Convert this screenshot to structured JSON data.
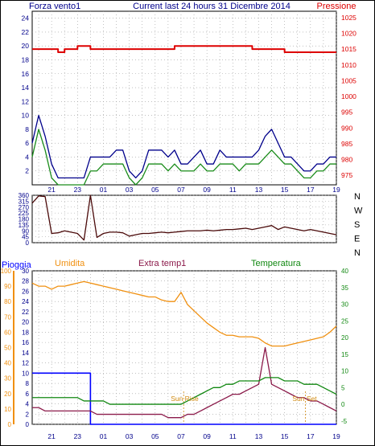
{
  "header": {
    "left": "Forza vento1",
    "center": "Current last 24 hours 31 Dicembre 2014",
    "right": "Pressione"
  },
  "colors": {
    "frame": "#000000",
    "grid": "#9a9a9a",
    "wind_max": "#00008b",
    "wind_avg": "#1a8c1a",
    "pressure": "#dd0000",
    "direction": "#4a0a0a",
    "rain": "#0000ff",
    "humidity": "#f09010",
    "extra_temp": "#8b1a4a",
    "temperature": "#118811",
    "sun": "#d08a10",
    "axis_blue": "#00008b"
  },
  "x_tick_labels": [
    "21",
    "23",
    "01",
    "03",
    "05",
    "07",
    "09",
    "11",
    "13",
    "15",
    "17",
    "19"
  ],
  "chart_data": [
    {
      "id": "wind_pressure",
      "type": "line",
      "y_left": {
        "label": "Forza vento1",
        "ticks": [
          "2",
          "4",
          "6",
          "8",
          "10",
          "12",
          "14",
          "16",
          "18",
          "20",
          "22",
          "24"
        ],
        "ylim": [
          0,
          25
        ]
      },
      "y_right": {
        "label": "Pressione",
        "ticks": [
          "975",
          "980",
          "985",
          "990",
          "995",
          "1000",
          "1005",
          "1010",
          "1015",
          "1020",
          "1025"
        ],
        "ylim": [
          972,
          1027
        ]
      },
      "x": [
        19.5,
        20,
        20.5,
        21,
        21.5,
        22,
        22.5,
        23,
        23.5,
        24,
        24.5,
        25,
        25.5,
        26,
        26.5,
        27,
        27.5,
        28,
        28.5,
        29,
        29.5,
        30,
        30.5,
        31,
        31.5,
        32,
        32.5,
        33,
        33.5,
        34,
        34.5,
        35,
        35.5,
        36,
        36.5,
        37,
        37.5,
        38,
        38.5,
        39,
        39.5,
        40,
        40.5,
        41,
        41.5,
        42,
        42.5,
        43
      ],
      "series": [
        {
          "name": "Forza vento1",
          "axis": "left",
          "color_key": "wind_max",
          "values": [
            6,
            10,
            7,
            3,
            1,
            1,
            1,
            1,
            1,
            4,
            4,
            4,
            4,
            5,
            5,
            2,
            1,
            2,
            5,
            5,
            5,
            4,
            5,
            3,
            3,
            4,
            5,
            3,
            3,
            5,
            4,
            4,
            4,
            4,
            4,
            5,
            7,
            8,
            6,
            4,
            4,
            3,
            2,
            2,
            3,
            3,
            4,
            4
          ]
        },
        {
          "name": "",
          "axis": "left",
          "color_key": "wind_avg",
          "values": [
            4,
            8,
            5,
            1,
            0,
            0,
            0,
            0,
            0,
            2,
            2,
            3,
            3,
            3,
            3,
            1,
            0,
            1,
            3,
            3,
            3,
            2,
            3,
            2,
            2,
            2,
            3,
            2,
            2,
            3,
            3,
            3,
            2,
            3,
            3,
            3,
            4,
            5,
            4,
            3,
            3,
            2,
            1,
            1,
            2,
            2,
            3,
            3
          ]
        },
        {
          "name": "Pressione",
          "axis": "right",
          "color_key": "pressure",
          "values": [
            1015,
            1015,
            1015,
            1015,
            1014,
            1015,
            1015,
            1016,
            1016,
            1015,
            1015,
            1015,
            1015,
            1015,
            1015,
            1015,
            1015,
            1015,
            1015,
            1015,
            1015,
            1015,
            1016,
            1016,
            1016,
            1016,
            1016,
            1016,
            1016,
            1016,
            1016,
            1016,
            1016,
            1016,
            1015,
            1015,
            1015,
            1015,
            1015,
            1014,
            1014,
            1014,
            1014,
            1014,
            1014,
            1014,
            1014,
            1014
          ]
        }
      ]
    },
    {
      "id": "direction",
      "type": "line",
      "y_left": {
        "ticks": [
          "0",
          "45",
          "90",
          "135",
          "180",
          "225",
          "270",
          "315",
          "360"
        ],
        "ylim": [
          0,
          360
        ]
      },
      "y_right": {
        "ticks": [
          "N",
          "W",
          "S",
          "E",
          "N"
        ]
      },
      "x": [
        19.5,
        20,
        20.5,
        21,
        21.5,
        22,
        22.5,
        23,
        23.5,
        24,
        24.5,
        25,
        25.5,
        26,
        26.5,
        27,
        27.5,
        28,
        28.5,
        29,
        29.5,
        30,
        30.5,
        31,
        31.5,
        32,
        32.5,
        33,
        33.5,
        34,
        34.5,
        35,
        35.5,
        36,
        36.5,
        37,
        37.5,
        38,
        38.5,
        39,
        39.5,
        40,
        40.5,
        41,
        41.5,
        42,
        42.5,
        43
      ],
      "series": [
        {
          "name": "",
          "color_key": "direction",
          "values": [
            300,
            355,
            350,
            70,
            75,
            90,
            80,
            70,
            20,
            360,
            40,
            70,
            80,
            80,
            75,
            50,
            60,
            70,
            70,
            75,
            80,
            75,
            80,
            85,
            90,
            90,
            90,
            95,
            90,
            95,
            100,
            100,
            105,
            110,
            100,
            110,
            120,
            130,
            100,
            120,
            110,
            100,
            90,
            100,
            90,
            80,
            70,
            60
          ]
        }
      ]
    },
    {
      "id": "rain_humidity_temp",
      "type": "line",
      "legend": [
        "Pioggia",
        "Umidita",
        "Extra temp1",
        "Temperatura"
      ],
      "y_axis_rain": {
        "ticks": [
          "0",
          "2",
          "4",
          "6",
          "8",
          "10",
          "12",
          "14",
          "16",
          "18",
          "20",
          "22",
          "24",
          "26",
          "28",
          "30"
        ],
        "ylim": [
          0,
          30
        ]
      },
      "y_axis_humidity": {
        "ticks": [
          "0",
          "10",
          "20",
          "30",
          "40",
          "50",
          "60",
          "70",
          "80",
          "90",
          "100"
        ],
        "ylim": [
          0,
          100
        ]
      },
      "y_axis_temp": {
        "ticks": [
          "-5",
          "0",
          "5",
          "10",
          "15",
          "20",
          "25",
          "30",
          "35",
          "40"
        ],
        "ylim": [
          -6,
          40
        ]
      },
      "annotations": [
        {
          "label": "Sun Rise",
          "x": 31.2
        },
        {
          "label": "Sun Set",
          "x": 40.6
        }
      ],
      "x": [
        19.5,
        20,
        20.5,
        21,
        21.5,
        22,
        22.5,
        23,
        23.5,
        24,
        24.5,
        25,
        25.5,
        26,
        26.5,
        27,
        27.5,
        28,
        28.5,
        29,
        29.5,
        30,
        30.5,
        31,
        31.5,
        32,
        32.5,
        33,
        33.5,
        34,
        34.5,
        35,
        35.5,
        36,
        36.5,
        37,
        37.5,
        38,
        38.5,
        39,
        39.5,
        40,
        40.5,
        41,
        41.5,
        42,
        42.5,
        43
      ],
      "series": [
        {
          "name": "Pioggia",
          "axis": "rain",
          "color_key": "rain",
          "values": [
            10,
            10,
            10,
            10,
            10,
            10,
            10,
            10,
            10,
            0,
            0,
            0,
            0,
            0,
            0,
            0,
            0,
            0,
            0,
            0,
            0,
            0,
            0,
            0,
            0,
            0,
            0,
            0,
            0,
            0,
            0,
            0,
            0,
            0,
            0,
            0,
            0,
            0,
            0,
            0,
            0,
            0,
            0,
            0,
            0,
            0,
            0,
            0
          ]
        },
        {
          "name": "Umidita",
          "axis": "humidity",
          "color_key": "humidity",
          "values": [
            92,
            90,
            90,
            88,
            90,
            90,
            91,
            92,
            93,
            92,
            91,
            90,
            89,
            88,
            87,
            86,
            85,
            84,
            83,
            83,
            81,
            80,
            80,
            86,
            78,
            74,
            70,
            66,
            63,
            60,
            58,
            58,
            57,
            57,
            57,
            56,
            53,
            51,
            51,
            51,
            52,
            53,
            54,
            55,
            56,
            57,
            60,
            64
          ]
        },
        {
          "name": "Extra temp1",
          "axis": "temp",
          "color_key": "extra_temp",
          "values": [
            -1,
            -1,
            -2,
            -2,
            -2,
            -2,
            -2,
            -2,
            -2,
            -2,
            -3,
            -3,
            -3,
            -3,
            -3,
            -3,
            -3,
            -3,
            -3,
            -3,
            -3,
            -4,
            -4,
            -4,
            -3,
            -3,
            -2,
            -1,
            0,
            1,
            2,
            3,
            3,
            4,
            5,
            6,
            17,
            6,
            5,
            4,
            3,
            2,
            2,
            1,
            1,
            0,
            -1,
            -2
          ]
        },
        {
          "name": "Temperatura",
          "axis": "temp",
          "color_key": "temperature",
          "values": [
            2,
            2,
            2,
            2,
            2,
            2,
            2,
            2,
            1,
            1,
            1,
            1,
            0,
            0,
            0,
            0,
            0,
            0,
            0,
            0,
            0,
            0,
            0,
            0,
            1,
            2,
            3,
            4,
            5,
            5,
            6,
            6,
            7,
            7,
            7,
            7,
            8,
            8,
            8,
            7,
            7,
            7,
            6,
            6,
            6,
            5,
            4,
            3
          ]
        }
      ]
    }
  ]
}
